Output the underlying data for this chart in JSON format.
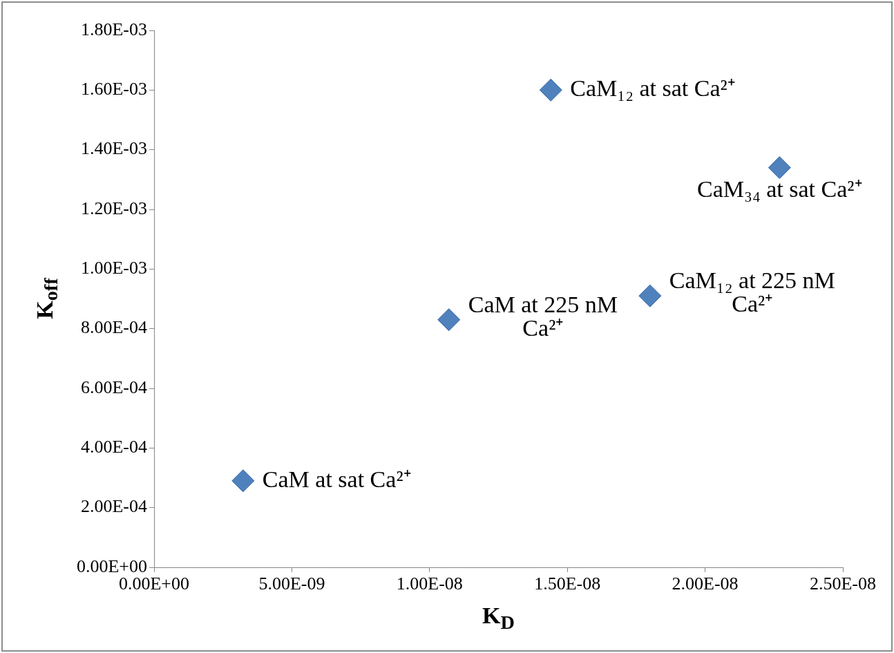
{
  "chart_data": {
    "type": "scatter",
    "xlabel": "K$_{D}$",
    "ylabel": "K$_{off}$",
    "x": [
      3.23e-09,
      1.07e-08,
      1.44e-08,
      1.8e-08,
      2.27e-08
    ],
    "series": [
      {
        "color": "#4f81bd",
        "values": [
          0.00029,
          0.00083,
          0.0016,
          0.00091,
          0.00134
        ]
      }
    ],
    "marker": "diamond",
    "grid": false,
    "legend": false,
    "xlim": [
      0,
      2.5e-08
    ],
    "xticks": [
      {
        "value": 0,
        "label": "0.00E+00"
      },
      {
        "value": 5e-09,
        "label": "5.00E-09"
      },
      {
        "value": 1e-08,
        "label": "1.00E-08"
      },
      {
        "value": 1.5e-08,
        "label": "1.50E-08"
      },
      {
        "value": 2e-08,
        "label": "2.00E-08"
      },
      {
        "value": 2.5e-08,
        "label": "2.50E-08"
      }
    ],
    "ylim": [
      0,
      0.0018
    ],
    "yticks": [
      {
        "value": 0,
        "label": "0.00E+00"
      },
      {
        "value": 0.0002,
        "label": "2.00E-04"
      },
      {
        "value": 0.0004,
        "label": "4.00E-04"
      },
      {
        "value": 0.0006,
        "label": "6.00E-04"
      },
      {
        "value": 0.0008,
        "label": "8.00E-04"
      },
      {
        "value": 0.001,
        "label": "1.00E-03"
      },
      {
        "value": 0.0012,
        "label": "1.20E-03"
      },
      {
        "value": 0.0014,
        "label": "1.40E-03"
      },
      {
        "value": 0.0016,
        "label": "1.60E-03"
      },
      {
        "value": 0.0018,
        "label": "1.80E-03"
      }
    ],
    "annotations": [
      {
        "text": "CaM at sat Ca²⁺",
        "x": 3.23e-09,
        "y": 0.00029
      },
      {
        "text": "CaM at 225 nM Ca²⁺",
        "x": 1.07e-08,
        "y": 0.00083
      },
      {
        "text": "CaM₁₂ at sat Ca²⁺",
        "x": 1.44e-08,
        "y": 0.0016
      },
      {
        "text": "CaM₁₂ at 225 nM Ca²⁺",
        "x": 1.8e-08,
        "y": 0.00091
      },
      {
        "text": "CaM₃₄ at sat Ca²⁺",
        "x": 2.27e-08,
        "y": 0.00134
      }
    ]
  }
}
